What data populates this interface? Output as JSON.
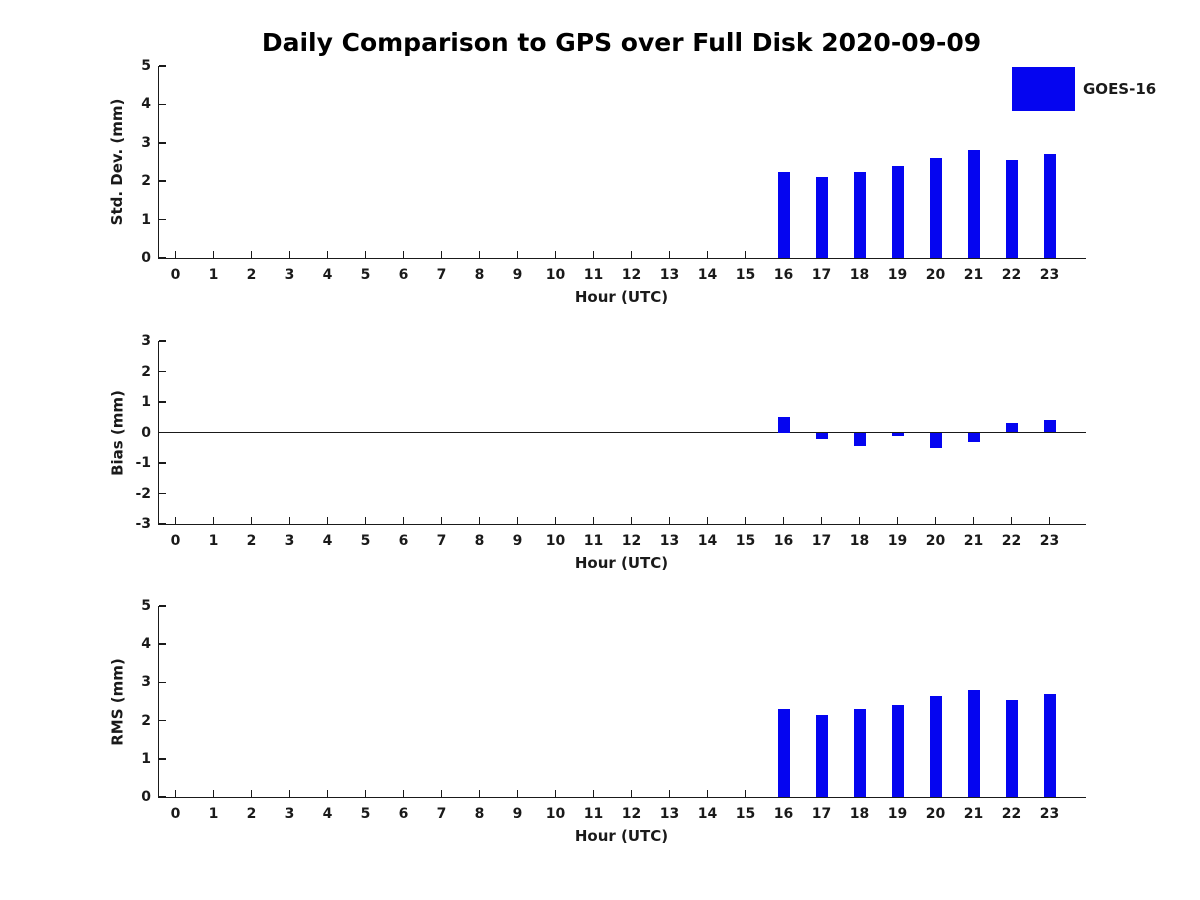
{
  "title": "Daily Comparison to GPS over Full Disk 2020-09-09",
  "legend": {
    "label": "GOES-16",
    "color": "#0505f0"
  },
  "xlabel": "Hour (UTC)",
  "xticks": [
    0,
    1,
    2,
    3,
    4,
    5,
    6,
    7,
    8,
    9,
    10,
    11,
    12,
    13,
    14,
    15,
    16,
    17,
    18,
    19,
    20,
    21,
    22,
    23
  ],
  "chart_data": [
    {
      "type": "bar",
      "ylabel": "Std. Dev. (mm)",
      "xlabel": "Hour (UTC)",
      "ylim": [
        0,
        5
      ],
      "yticks": [
        0,
        1,
        2,
        3,
        4,
        5
      ],
      "bar_color": "#0505f0",
      "series": [
        {
          "name": "GOES-16",
          "x": [
            16,
            17,
            18,
            19,
            20,
            21,
            22,
            23
          ],
          "values": [
            2.25,
            2.1,
            2.25,
            2.4,
            2.6,
            2.8,
            2.55,
            2.7
          ]
        }
      ]
    },
    {
      "type": "bar",
      "ylabel": "Bias (mm)",
      "xlabel": "Hour (UTC)",
      "ylim": [
        -3,
        3
      ],
      "yticks": [
        -3,
        -2,
        -1,
        0,
        1,
        2,
        3
      ],
      "zero_line": true,
      "bar_color": "#0505f0",
      "series": [
        {
          "name": "GOES-16",
          "x": [
            16,
            17,
            18,
            19,
            20,
            21,
            22,
            23
          ],
          "values": [
            0.5,
            -0.2,
            -0.45,
            -0.1,
            -0.5,
            -0.3,
            0.3,
            0.4
          ]
        }
      ]
    },
    {
      "type": "bar",
      "ylabel": "RMS (mm)",
      "xlabel": "Hour (UTC)",
      "ylim": [
        0,
        5
      ],
      "yticks": [
        0,
        1,
        2,
        3,
        4,
        5
      ],
      "bar_color": "#0505f0",
      "series": [
        {
          "name": "GOES-16",
          "x": [
            16,
            17,
            18,
            19,
            20,
            21,
            22,
            23
          ],
          "values": [
            2.3,
            2.15,
            2.3,
            2.4,
            2.65,
            2.8,
            2.55,
            2.7
          ]
        }
      ]
    }
  ]
}
